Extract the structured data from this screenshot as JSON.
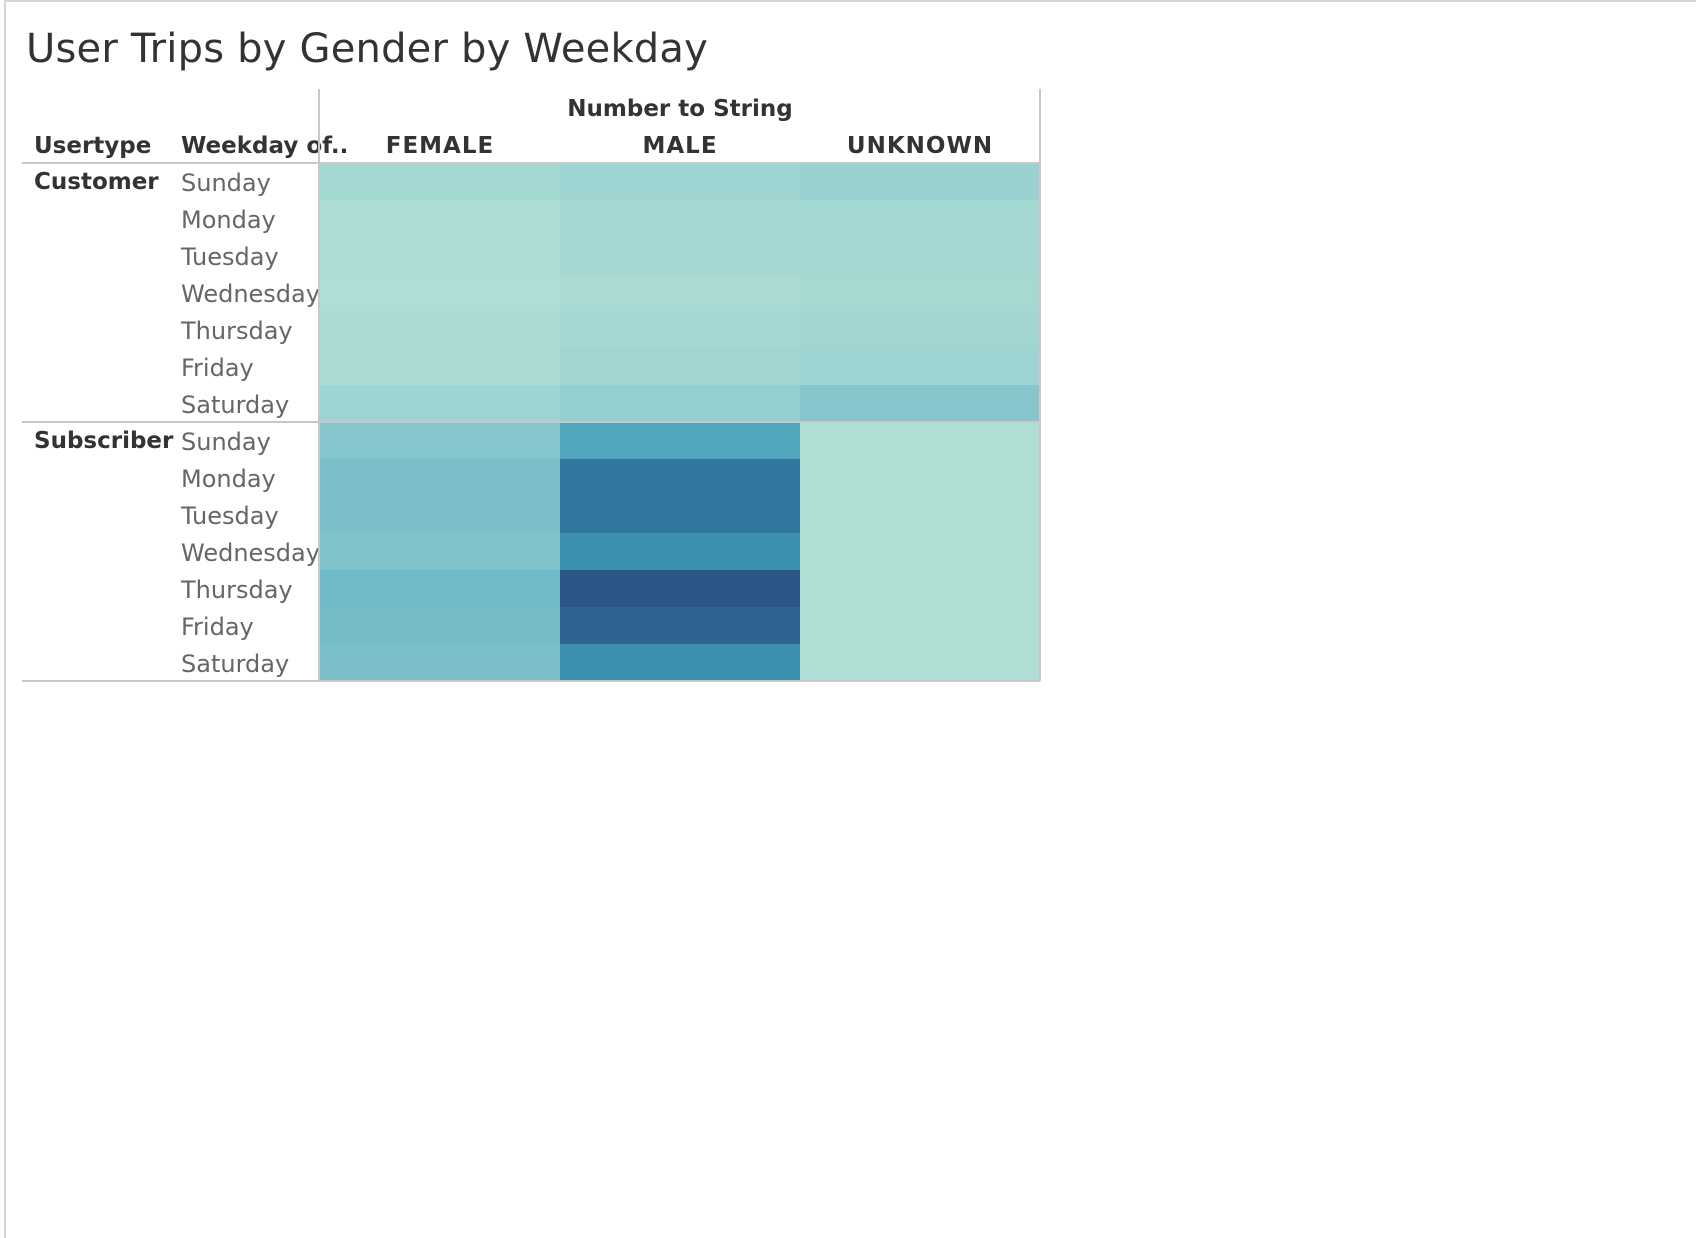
{
  "chart_data": {
    "type": "heatmap",
    "title": "User Trips by Gender by Weekday",
    "row_headers": [
      "Usertype",
      "Weekday of.."
    ],
    "column_group_label": "Number to String",
    "columns": [
      "FEMALE",
      "MALE",
      "UNKNOWN"
    ],
    "row_groups": [
      {
        "name": "Customer",
        "rows": [
          {
            "day": "Sunday",
            "values": [
              0.2,
              0.24,
              0.27
            ]
          },
          {
            "day": "Monday",
            "values": [
              0.12,
              0.19,
              0.2
            ]
          },
          {
            "day": "Tuesday",
            "values": [
              0.12,
              0.19,
              0.2
            ]
          },
          {
            "day": "Wednesday",
            "values": [
              0.11,
              0.15,
              0.17
            ]
          },
          {
            "day": "Thursday",
            "values": [
              0.13,
              0.2,
              0.22
            ]
          },
          {
            "day": "Friday",
            "values": [
              0.14,
              0.22,
              0.24
            ]
          },
          {
            "day": "Saturday",
            "values": [
              0.24,
              0.3,
              0.38
            ]
          }
        ]
      },
      {
        "name": "Subscriber",
        "rows": [
          {
            "day": "Sunday",
            "values": [
              0.38,
              0.62,
              0.1
            ]
          },
          {
            "day": "Monday",
            "values": [
              0.44,
              0.86,
              0.1
            ]
          },
          {
            "day": "Tuesday",
            "values": [
              0.44,
              0.86,
              0.1
            ]
          },
          {
            "day": "Wednesday",
            "values": [
              0.41,
              0.74,
              0.1
            ]
          },
          {
            "day": "Thursday",
            "values": [
              0.5,
              1.0,
              0.1
            ]
          },
          {
            "day": "Friday",
            "values": [
              0.47,
              0.94,
              0.1
            ]
          },
          {
            "day": "Saturday",
            "values": [
              0.45,
              0.74,
              0.1
            ]
          }
        ]
      }
    ],
    "color_scale": {
      "low": "#bbe6d8",
      "high": "#2c5685"
    }
  }
}
